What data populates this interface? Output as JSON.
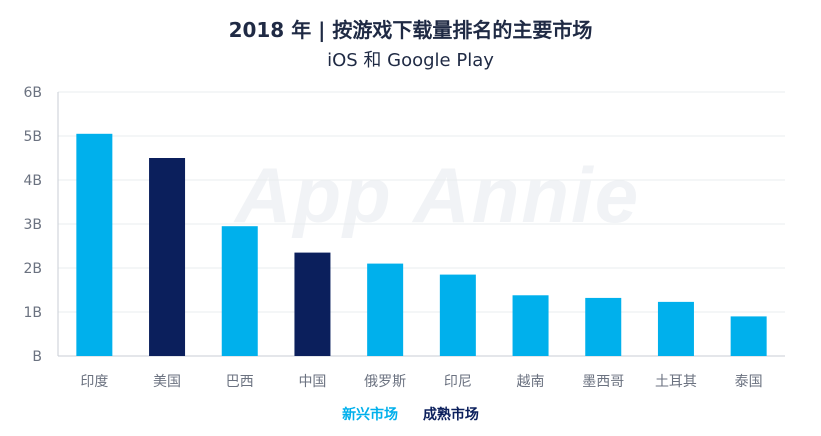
{
  "header": {
    "title": "2018 年 | 按游戏下载量排名的主要市场",
    "subtitle": "iOS 和 Google Play"
  },
  "watermark": "App Annie",
  "colors": {
    "emerging": "#00b0ec",
    "mature": "#0b1f5c",
    "grid": "#e9ecef",
    "axis_text": "#6b7280"
  },
  "legend": {
    "emerging_label": "新兴市场",
    "mature_label": "成熟市场"
  },
  "chart_data": {
    "type": "bar",
    "categories": [
      "印度",
      "美国",
      "巴西",
      "中国",
      "俄罗斯",
      "印尼",
      "越南",
      "墨西哥",
      "土耳其",
      "泰国"
    ],
    "values": [
      5.05,
      4.5,
      2.95,
      2.35,
      2.1,
      1.85,
      1.38,
      1.32,
      1.23,
      0.9
    ],
    "market_type": [
      "emerging",
      "mature",
      "emerging",
      "mature",
      "emerging",
      "emerging",
      "emerging",
      "emerging",
      "emerging",
      "emerging"
    ],
    "yticks": [
      "B",
      "1B",
      "2B",
      "3B",
      "4B",
      "5B",
      "6B"
    ],
    "ylim": [
      0,
      6
    ],
    "grid": true
  }
}
